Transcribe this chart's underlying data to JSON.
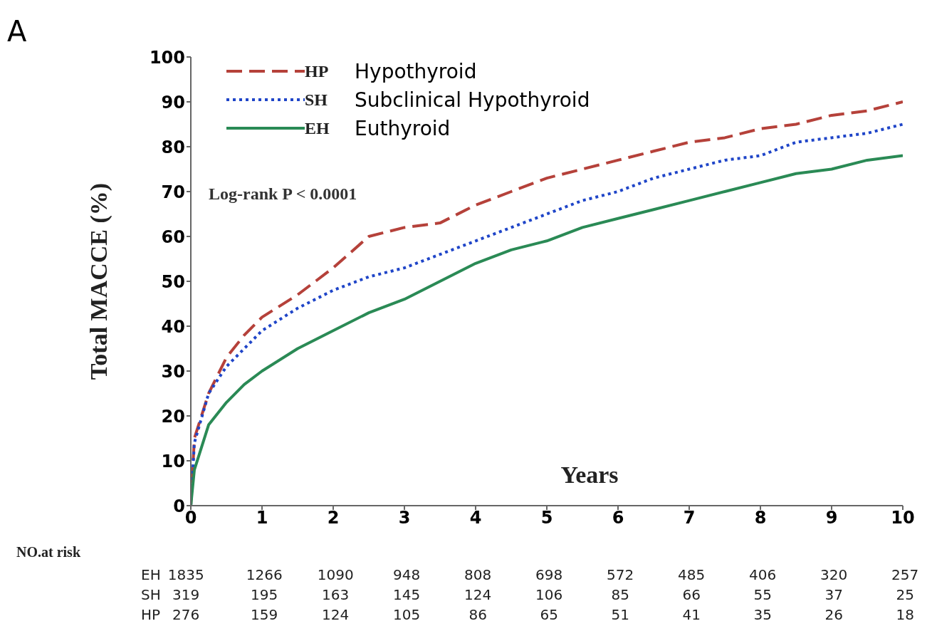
{
  "chart_data": {
    "type": "line",
    "title": "A",
    "xlabel": "Years",
    "ylabel": "Total  MACCE (%)",
    "x": [
      0,
      0.05,
      0.25,
      0.5,
      0.75,
      1,
      1.5,
      2,
      2.5,
      3,
      3.5,
      4,
      4.5,
      5,
      5.5,
      6,
      6.5,
      7,
      7.5,
      8,
      8.5,
      9,
      9.5,
      10
    ],
    "series": [
      {
        "name": "HP",
        "color": "#b5413a",
        "line_style": "dashed",
        "values": [
          0,
          15,
          25,
          33,
          38,
          42,
          47,
          53,
          60,
          62,
          63,
          67,
          70,
          73,
          75,
          77,
          79,
          81,
          82,
          84,
          85,
          87,
          88,
          90
        ]
      },
      {
        "name": "SH",
        "color": "#1f45c8",
        "line_style": "dotted",
        "values": [
          0,
          14,
          25,
          31,
          35,
          39,
          44,
          48,
          51,
          53,
          56,
          59,
          62,
          65,
          68,
          70,
          73,
          75,
          77,
          78,
          81,
          82,
          83,
          85
        ]
      },
      {
        "name": "EH",
        "color": "#2a8a55",
        "line_style": "solid",
        "values": [
          0,
          8,
          18,
          23,
          27,
          30,
          35,
          39,
          43,
          46,
          50,
          54,
          57,
          59,
          62,
          64,
          66,
          68,
          70,
          72,
          74,
          75,
          77,
          78
        ]
      }
    ],
    "xlim": [
      0,
      10
    ],
    "xticks": [
      0,
      1,
      2,
      3,
      4,
      5,
      6,
      7,
      8,
      9,
      10
    ],
    "ylim": [
      0,
      100
    ],
    "yticks": [
      0,
      10,
      20,
      30,
      40,
      50,
      60,
      70,
      80,
      90,
      100
    ],
    "grid": false,
    "legend": "top left",
    "marker": "none",
    "annotations": [
      "Log-rank P < 0.0001",
      "Hypothyroid",
      "Subclinical Hypothyroid",
      "Euthyroid",
      "NO.at risk",
      "EH 1835 1266 1090 948 808 698 572 485 406 320 257",
      "SH 319 195 163 145 124 106 85 66 55 37 25",
      "HP 276 159 124 105 86 65 51 41 35 26 18"
    ]
  }
}
